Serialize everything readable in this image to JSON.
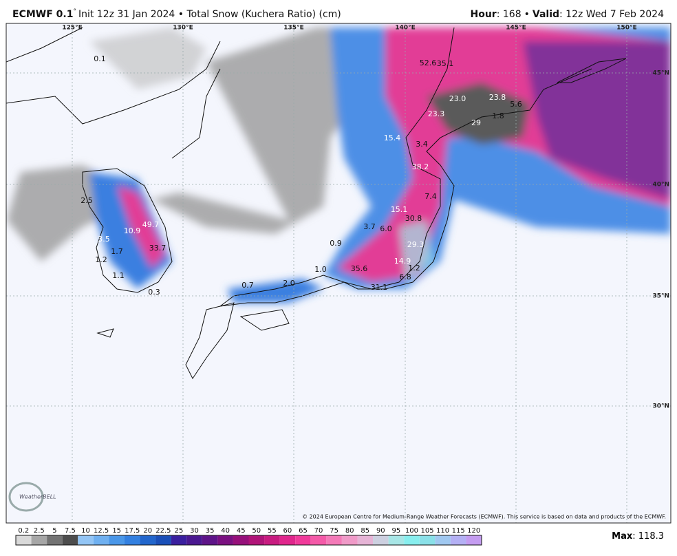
{
  "header": {
    "model": "ECMWF 0.1",
    "degree": "°",
    "description": "Init 12z 31 Jan 2024 • Total Snow (Kuchera Ratio) (cm)",
    "hour_label": "Hour",
    "hour_value": ": 168",
    "separator": "•",
    "valid_label": "Valid",
    "valid_value": ": 12z Wed 7 Feb 2024"
  },
  "longitudes": [
    "125°E",
    "130°E",
    "135°E",
    "140°E",
    "145°E",
    "150°E"
  ],
  "latitudes": [
    "45°N",
    "40°N",
    "35°N",
    "30°N"
  ],
  "map_labels": [
    "0.1",
    "2.5",
    "49.7",
    "10.9",
    "3.5",
    "33.7",
    "1.7",
    "1.2",
    "1.1",
    "0.3",
    "0.7",
    "2.0",
    "1.0",
    "35.6",
    "31.1",
    "6.8",
    "14.9",
    "1.2",
    "29.3",
    "30.8",
    "15.1",
    "3.7",
    "6.0",
    "0.9",
    "7.4",
    "38.2",
    "3.4",
    "15.4",
    "23.3",
    "23.0",
    "29",
    "1.8",
    "23.8",
    "52.6",
    "35.1",
    "5.6"
  ],
  "logo": "WeatherBELL",
  "copyright": "© 2024 European Centre for Medium-Range Weather Forecasts (ECMWF). This service is based on data and products of the ECMWF.",
  "colorbar_labels": [
    "0.2",
    "2.5",
    "5",
    "7.5",
    "10",
    "12.5",
    "15",
    "17.5",
    "20",
    "22.5",
    "25",
    "30",
    "35",
    "40",
    "45",
    "50",
    "55",
    "60",
    "65",
    "70",
    "75",
    "80",
    "85",
    "90",
    "95",
    "100",
    "105",
    "110",
    "115",
    "120"
  ],
  "max_label": "Max",
  "max_value": ": 118.3"
}
